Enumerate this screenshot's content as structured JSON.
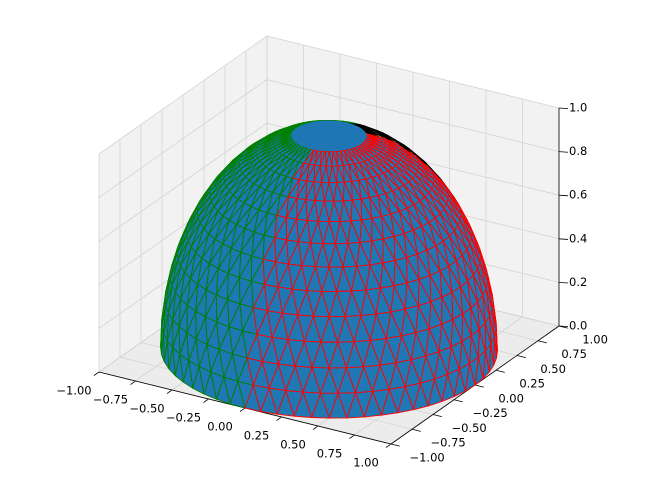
{
  "chart_data": {
    "type": "hemisphere_mesh",
    "xlim": [
      -1,
      1
    ],
    "ylim": [
      -1,
      1
    ],
    "zlim": [
      0,
      1
    ],
    "xticks": [
      {
        "value": -1,
        "label": "−1.00"
      },
      {
        "value": -0.75,
        "label": "−0.75"
      },
      {
        "value": -0.5,
        "label": "−0.50"
      },
      {
        "value": -0.25,
        "label": "−0.25"
      },
      {
        "value": 0,
        "label": "0.00"
      },
      {
        "value": 0.25,
        "label": "0.25"
      },
      {
        "value": 0.5,
        "label": "0.50"
      },
      {
        "value": 0.75,
        "label": "0.75"
      },
      {
        "value": 1,
        "label": "1.00"
      }
    ],
    "yticks": [
      {
        "value": -1,
        "label": "−1.00"
      },
      {
        "value": -0.75,
        "label": "−0.75"
      },
      {
        "value": -0.5,
        "label": "−0.50"
      },
      {
        "value": -0.25,
        "label": "−0.25"
      },
      {
        "value": 0,
        "label": "0.00"
      },
      {
        "value": 0.25,
        "label": "0.25"
      },
      {
        "value": 0.5,
        "label": "0.50"
      },
      {
        "value": 0.75,
        "label": "0.75"
      },
      {
        "value": 1,
        "label": "1.00"
      }
    ],
    "zticks": [
      {
        "value": 0,
        "label": "0.0"
      },
      0.2,
      0.4,
      0.6,
      0.8,
      {
        "value": 1,
        "label": "1.0"
      }
    ],
    "grid": true,
    "regions": [
      {
        "face": "#1f77b4",
        "edge": "#1f77b4"
      },
      {
        "face": "#1f77b4",
        "edge": "green"
      },
      {
        "face": "#1f77b4",
        "edge": "red"
      },
      {
        "face": "#ffc61a",
        "edge": "black"
      }
    ]
  }
}
